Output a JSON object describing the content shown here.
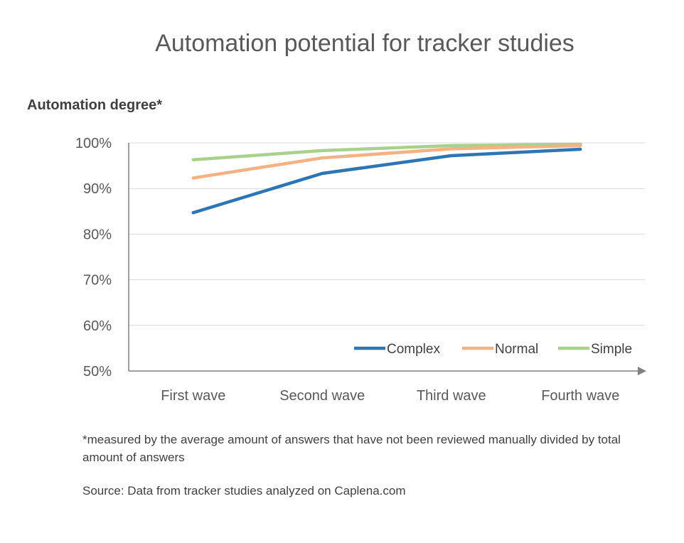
{
  "chart_data": {
    "type": "line",
    "title": "Automation potential for tracker studies",
    "ylabel": "Automation degree*",
    "xlabel": "",
    "categories": [
      "First wave",
      "Second wave",
      "Third wave",
      "Fourth wave"
    ],
    "y_ticks": [
      "50%",
      "60%",
      "70%",
      "80%",
      "90%",
      "100%"
    ],
    "ylim": [
      50,
      100
    ],
    "grid": "horizontal",
    "legend_position": "bottom-right",
    "series": [
      {
        "name": "Complex",
        "color": "#2E75B6",
        "values": [
          84.7,
          93.3,
          97.2,
          98.6
        ]
      },
      {
        "name": "Normal",
        "color": "#F4B183",
        "values": [
          92.3,
          96.7,
          98.7,
          99.4
        ]
      },
      {
        "name": "Simple",
        "color": "#A9D18E",
        "values": [
          96.3,
          98.3,
          99.4,
          99.7
        ]
      }
    ],
    "footnote": "*measured by the average amount of answers that have not been reviewed manually divided by total amount of answers",
    "source": "Source: Data from tracker studies analyzed on Caplena.com"
  }
}
